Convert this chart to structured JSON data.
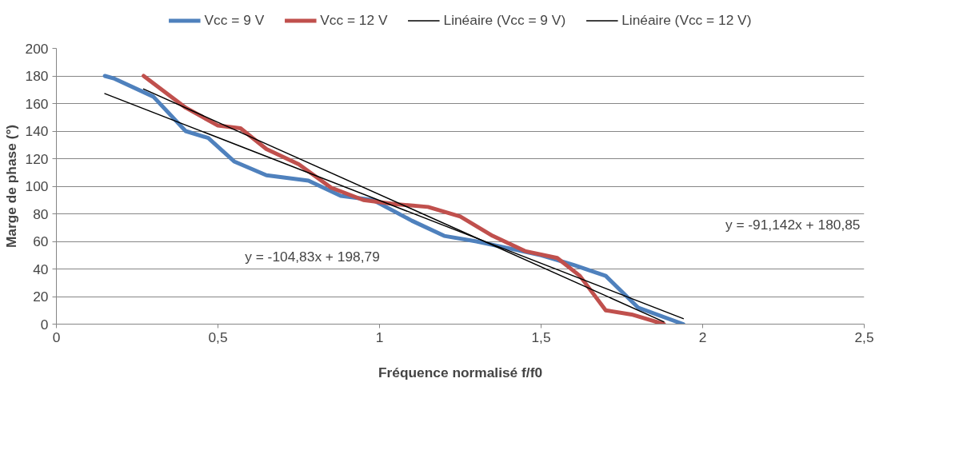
{
  "chart_data": {
    "type": "line",
    "xlabel": "Fréquence normalisé f/f0",
    "ylabel": "Marge de phase (°)",
    "xlim": [
      0,
      2.5
    ],
    "xticks": [
      0,
      {
        "value": 0.5,
        "label": "0,5"
      },
      1,
      {
        "value": 1.5,
        "label": "1,5"
      },
      2,
      {
        "value": 2.5,
        "label": "2,5"
      }
    ],
    "ylim": [
      0,
      200
    ],
    "yticks": [
      0,
      20,
      40,
      60,
      80,
      100,
      120,
      140,
      160,
      180,
      200
    ],
    "grid": "y",
    "legend": "top",
    "marker": "none",
    "series": [
      {
        "name": "Vcc = 9 V",
        "color": "#4f81bd",
        "x": [
          0.15,
          0.18,
          0.3,
          0.4,
          0.47,
          0.55,
          0.65,
          0.78,
          0.88,
          0.98,
          1.1,
          1.2,
          1.3,
          1.4,
          1.5,
          1.6,
          1.7,
          1.8,
          1.94
        ],
        "values": [
          180,
          178,
          165,
          140,
          135,
          118,
          108,
          104,
          93,
          90,
          75,
          64,
          60,
          55,
          50,
          43,
          35,
          12,
          0
        ]
      },
      {
        "name": "Vcc = 12 V",
        "color": "#c0504d",
        "x": [
          0.27,
          0.4,
          0.5,
          0.57,
          0.65,
          0.75,
          0.85,
          0.95,
          1.05,
          1.15,
          1.25,
          1.35,
          1.45,
          1.55,
          1.62,
          1.7,
          1.78,
          1.88
        ],
        "values": [
          180,
          157,
          144,
          142,
          127,
          116,
          99,
          90,
          87,
          85,
          78,
          64,
          53,
          48,
          35,
          10,
          7,
          0
        ]
      },
      {
        "name": "Linéaire (Vcc = 9 V)",
        "color": "#000000",
        "x": [
          0.15,
          1.94
        ],
        "values": [
          167.2,
          4.0
        ]
      },
      {
        "name": "Linéaire (Vcc = 12 V)",
        "color": "#000000",
        "x": [
          0.27,
          1.88
        ],
        "values": [
          170.5,
          1.7
        ]
      }
    ],
    "annotations": [
      "y = -104,83x + 198,79",
      "y = -91,142x + 180,85"
    ]
  }
}
